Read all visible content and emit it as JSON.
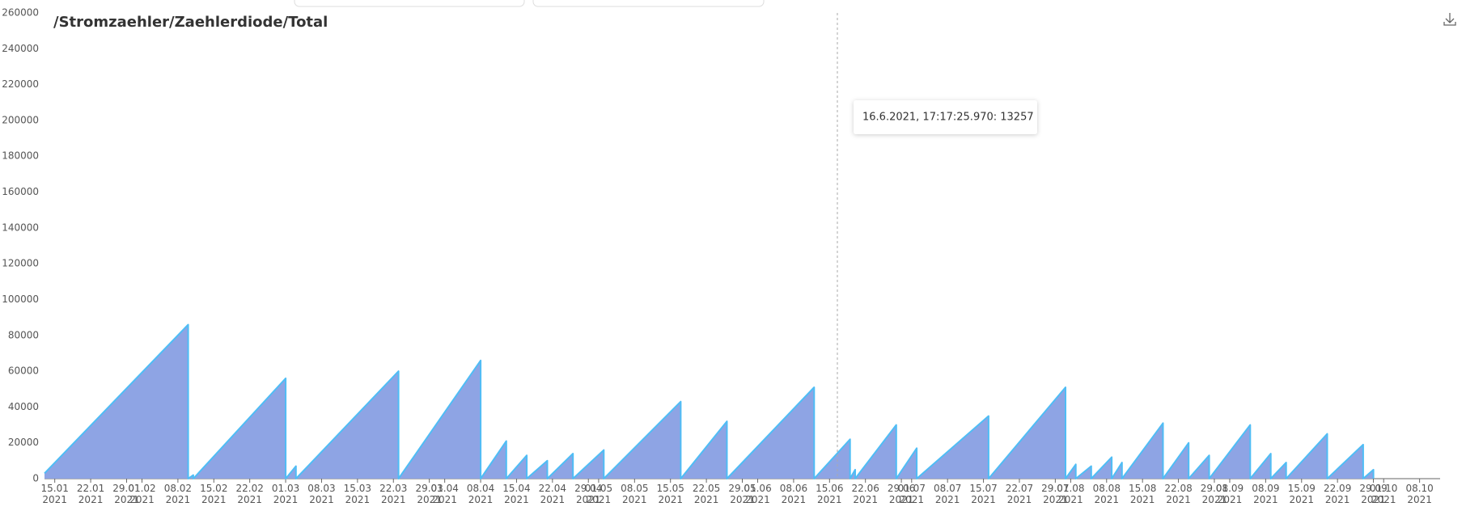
{
  "chart_data": {
    "type": "area",
    "title": "/Stromzaehler/Zaehlerdiode/Total",
    "tooltip": "16.6.2021, 17:17:25.970: 13257",
    "fill": "#8ea4e4",
    "color": "#4fbdf5",
    "x": [
      "2021-01-13",
      "2021-02-10",
      "2021-02-10",
      "2021-02-11",
      "2021-02-11",
      "2021-03-01",
      "2021-03-01",
      "2021-03-03",
      "2021-03-03",
      "2021-03-23",
      "2021-03-23",
      "2021-04-08",
      "2021-04-08",
      "2021-04-13",
      "2021-04-13",
      "2021-04-17",
      "2021-04-17",
      "2021-04-21",
      "2021-04-21",
      "2021-04-26",
      "2021-04-26",
      "2021-05-02",
      "2021-05-02",
      "2021-05-17",
      "2021-05-17",
      "2021-05-26",
      "2021-05-26",
      "2021-06-12",
      "2021-06-12",
      "2021-06-19",
      "2021-06-19",
      "2021-06-20",
      "2021-06-20",
      "2021-06-28",
      "2021-06-28",
      "2021-07-02",
      "2021-07-02",
      "2021-07-16",
      "2021-07-16",
      "2021-07-31",
      "2021-07-31",
      "2021-08-02",
      "2021-08-02",
      "2021-08-05",
      "2021-08-05",
      "2021-08-09",
      "2021-08-09",
      "2021-08-11",
      "2021-08-11",
      "2021-08-19",
      "2021-08-19",
      "2021-08-24",
      "2021-08-24",
      "2021-08-28",
      "2021-08-28",
      "2021-09-05",
      "2021-09-05",
      "2021-09-09",
      "2021-09-09",
      "2021-09-12",
      "2021-09-12",
      "2021-09-20",
      "2021-09-20",
      "2021-09-27",
      "2021-09-27",
      "2021-09-29",
      "2021-09-29"
    ],
    "values": [
      3000,
      86000,
      0,
      2000,
      0,
      56000,
      0,
      7000,
      0,
      60000,
      0,
      66000,
      0,
      21000,
      0,
      13000,
      0,
      10000,
      0,
      14000,
      0,
      16000,
      0,
      43000,
      0,
      32000,
      0,
      51000,
      0,
      22000,
      0,
      5000,
      0,
      30000,
      0,
      17000,
      0,
      35000,
      0,
      51000,
      0,
      8000,
      0,
      7000,
      0,
      12000,
      0,
      9000,
      0,
      31000,
      0,
      20000,
      0,
      13000,
      0,
      30000,
      0,
      14000,
      0,
      9000,
      0,
      25000,
      0,
      19000,
      0,
      5000,
      0
    ],
    "xlim": [
      "2021-01-13",
      "2021-10-12"
    ],
    "xticks": [
      {
        "value": "2021-01-15",
        "label": "15.01\n2021"
      },
      {
        "value": "2021-01-22",
        "label": "22.01\n2021"
      },
      {
        "value": "2021-01-29",
        "label": "29.01\n2021"
      },
      {
        "value": "2021-02-01",
        "label": "01.02\n2021"
      },
      {
        "value": "2021-02-08",
        "label": "08.02\n2021"
      },
      {
        "value": "2021-02-15",
        "label": "15.02\n2021"
      },
      {
        "value": "2021-02-22",
        "label": "22.02\n2021"
      },
      {
        "value": "2021-03-01",
        "label": "01.03\n2021"
      },
      {
        "value": "2021-03-08",
        "label": "08.03\n2021"
      },
      {
        "value": "2021-03-15",
        "label": "15.03\n2021"
      },
      {
        "value": "2021-03-22",
        "label": "22.03\n2021"
      },
      {
        "value": "2021-03-29",
        "label": "29.03\n2021"
      },
      {
        "value": "2021-04-01",
        "label": "01.04\n2021"
      },
      {
        "value": "2021-04-08",
        "label": "08.04\n2021"
      },
      {
        "value": "2021-04-15",
        "label": "15.04\n2021"
      },
      {
        "value": "2021-04-22",
        "label": "22.04\n2021"
      },
      {
        "value": "2021-04-29",
        "label": "29.04\n2021"
      },
      {
        "value": "2021-05-01",
        "label": "01.05\n2021"
      },
      {
        "value": "2021-05-08",
        "label": "08.05\n2021"
      },
      {
        "value": "2021-05-15",
        "label": "15.05\n2021"
      },
      {
        "value": "2021-05-22",
        "label": "22.05\n2021"
      },
      {
        "value": "2021-05-29",
        "label": "29.05\n2021"
      },
      {
        "value": "2021-06-01",
        "label": "01.06\n2021"
      },
      {
        "value": "2021-06-08",
        "label": "08.06\n2021"
      },
      {
        "value": "2021-06-15",
        "label": "15.06\n2021"
      },
      {
        "value": "2021-06-22",
        "label": "22.06\n2021"
      },
      {
        "value": "2021-06-29",
        "label": "29.06\n2021"
      },
      {
        "value": "2021-07-01",
        "label": "01.07\n2021"
      },
      {
        "value": "2021-07-08",
        "label": "08.07\n2021"
      },
      {
        "value": "2021-07-15",
        "label": "15.07\n2021"
      },
      {
        "value": "2021-07-22",
        "label": "22.07\n2021"
      },
      {
        "value": "2021-07-29",
        "label": "29.07\n2021"
      },
      {
        "value": "2021-08-01",
        "label": "01.08\n2021"
      },
      {
        "value": "2021-08-08",
        "label": "08.08\n2021"
      },
      {
        "value": "2021-08-15",
        "label": "15.08\n2021"
      },
      {
        "value": "2021-08-22",
        "label": "22.08\n2021"
      },
      {
        "value": "2021-08-29",
        "label": "29.08\n2021"
      },
      {
        "value": "2021-09-01",
        "label": "01.09\n2021"
      },
      {
        "value": "2021-09-08",
        "label": "08.09\n2021"
      },
      {
        "value": "2021-09-15",
        "label": "15.09\n2021"
      },
      {
        "value": "2021-09-22",
        "label": "22.09\n2021"
      },
      {
        "value": "2021-09-29",
        "label": "29.09\n2021"
      },
      {
        "value": "2021-10-01",
        "label": "01.10\n2021"
      },
      {
        "value": "2021-10-08",
        "label": "08.10\n2021"
      }
    ],
    "ylim": [
      0,
      260000
    ],
    "yticks": [
      0,
      20000,
      40000,
      60000,
      80000,
      100000,
      120000,
      140000,
      160000,
      180000,
      200000,
      220000,
      240000,
      260000
    ]
  }
}
